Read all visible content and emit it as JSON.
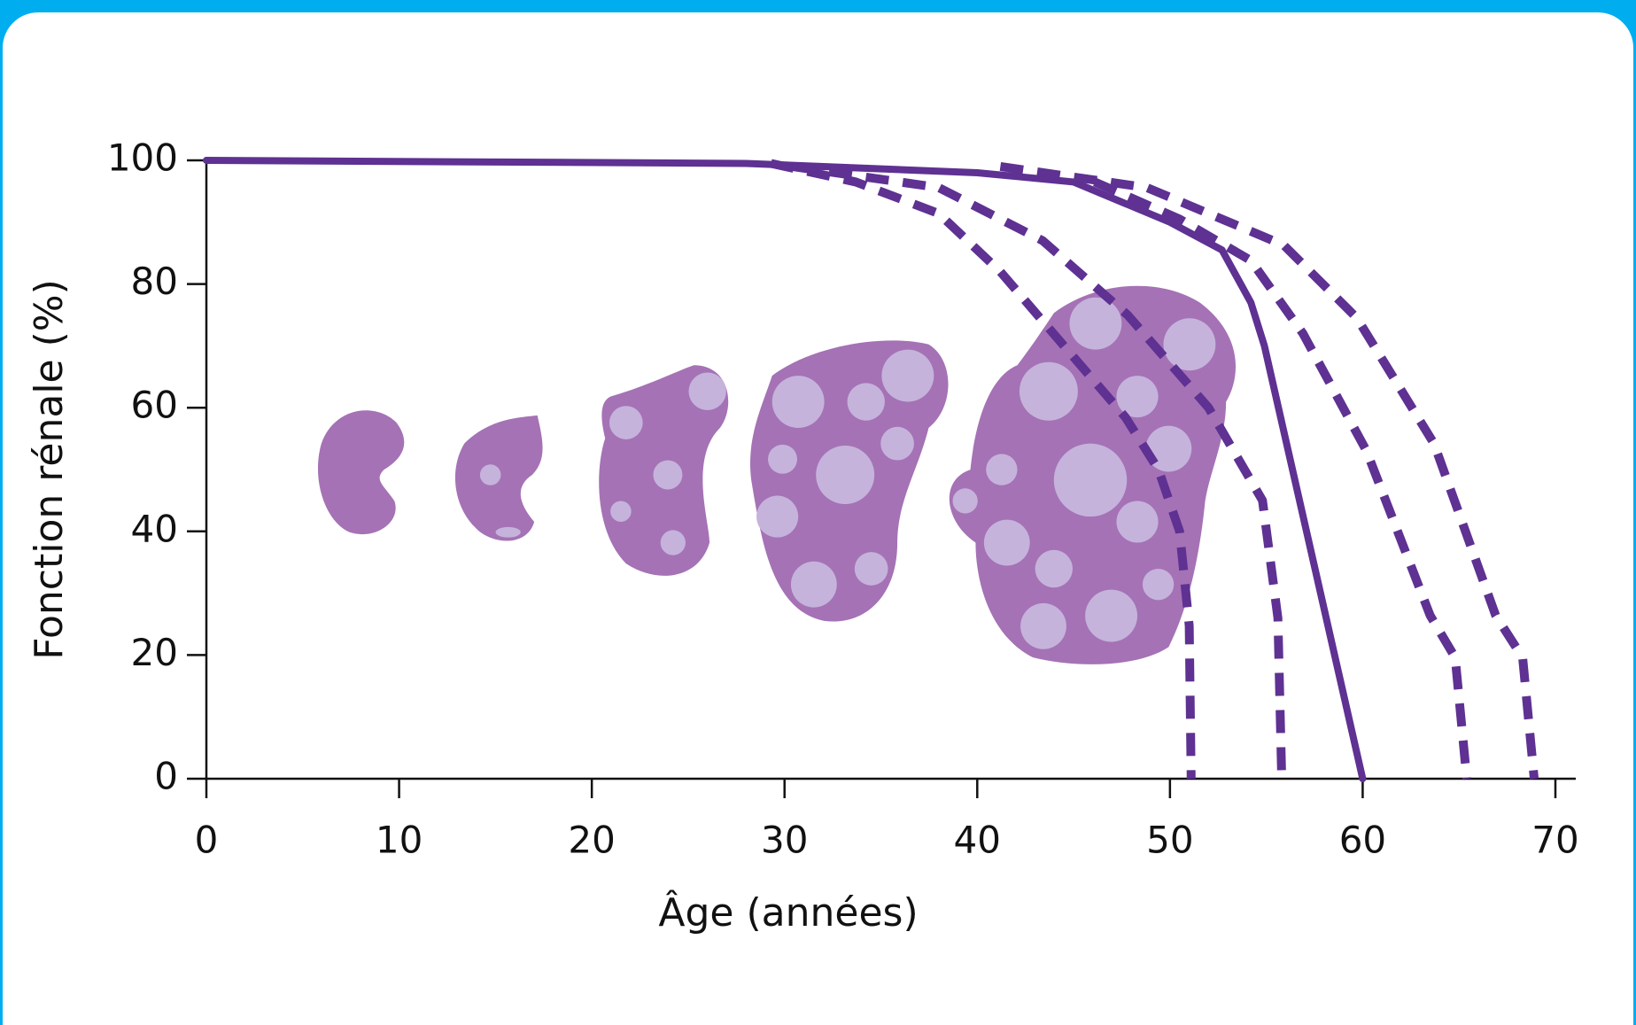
{
  "chart_data": {
    "type": "line",
    "xlabel": "Âge (années)",
    "ylabel": "Fonction rénale (%)",
    "xlim": [
      0,
      70
    ],
    "xticks": [
      0,
      10,
      20,
      30,
      40,
      50,
      60,
      70
    ],
    "ylim": [
      0,
      100
    ],
    "yticks": [
      0,
      20,
      40,
      60,
      80,
      100
    ],
    "series": [
      {
        "color": "#5e3192",
        "style": "solid",
        "x": [
          0,
          28,
          40,
          45,
          50,
          52.7,
          54.2,
          54.9,
          60
        ],
        "values": [
          100,
          99.5,
          98,
          96.5,
          90,
          85.5,
          77,
          70,
          0
        ]
      },
      {
        "color": "#5e3192",
        "style": "dashed",
        "x": [
          29.3,
          33.7,
          38,
          41.2,
          44.5,
          47.7,
          49.4,
          50.5,
          51,
          51.1
        ],
        "values": [
          99.5,
          96.5,
          91.4,
          82,
          70,
          58.4,
          50,
          40,
          24.7,
          0
        ]
      },
      {
        "color": "#5e3192",
        "style": "dashed",
        "x": [
          30.4,
          38,
          43.4,
          47.8,
          52,
          54.8,
          55.6,
          55.8
        ],
        "values": [
          99,
          95.6,
          87,
          75,
          60,
          45,
          26,
          0
        ]
      },
      {
        "color": "#5e3192",
        "style": "dashed",
        "x": [
          46.1,
          50.5,
          54.2,
          56.9,
          60.2,
          63.5,
          64.8,
          65.4
        ],
        "values": [
          96.5,
          90.5,
          83.8,
          72,
          53,
          26.4,
          19.6,
          0
        ]
      },
      {
        "color": "#5e3192",
        "style": "dashed",
        "x": [
          41.2,
          48.8,
          55.9,
          59.7,
          63.7,
          66.9,
          68.3,
          68.9
        ],
        "values": [
          99,
          95.6,
          86.3,
          74.5,
          54.2,
          26.4,
          19.6,
          0
        ]
      }
    ]
  }
}
